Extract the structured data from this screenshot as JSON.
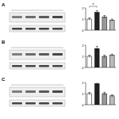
{
  "panels": [
    "A",
    "B",
    "C"
  ],
  "chart_data": [
    {
      "type": "bar",
      "categories": [
        null,
        null,
        null,
        null
      ],
      "values": [
        1.0,
        1.6,
        1.2,
        0.9
      ],
      "errors": [
        0.1,
        0.15,
        0.12,
        0.1
      ],
      "colors": [
        "#ffffff",
        "#222222",
        "#999999",
        "#d0d0d0"
      ],
      "ylim": [
        0,
        2
      ],
      "yticks": [
        0,
        1,
        2
      ],
      "annotations": [
        "*"
      ]
    },
    {
      "type": "bar",
      "categories": [
        null,
        null,
        null,
        null
      ],
      "values": [
        1.0,
        1.7,
        1.0,
        1.1
      ],
      "errors": [
        0.1,
        0.2,
        0.12,
        0.1
      ],
      "colors": [
        "#ffffff",
        "#222222",
        "#999999",
        "#d0d0d0"
      ],
      "ylim": [
        0,
        2
      ],
      "yticks": [
        0,
        1,
        2
      ]
    },
    {
      "type": "bar",
      "categories": [
        null,
        null,
        null,
        null
      ],
      "values": [
        1.0,
        1.9,
        1.0,
        0.8
      ],
      "errors": [
        0.1,
        0.2,
        0.12,
        0.1
      ],
      "colors": [
        "#ffffff",
        "#222222",
        "#999999",
        "#d0d0d0"
      ],
      "ylim": [
        0,
        2
      ],
      "yticks": [
        0,
        1,
        2
      ]
    }
  ]
}
